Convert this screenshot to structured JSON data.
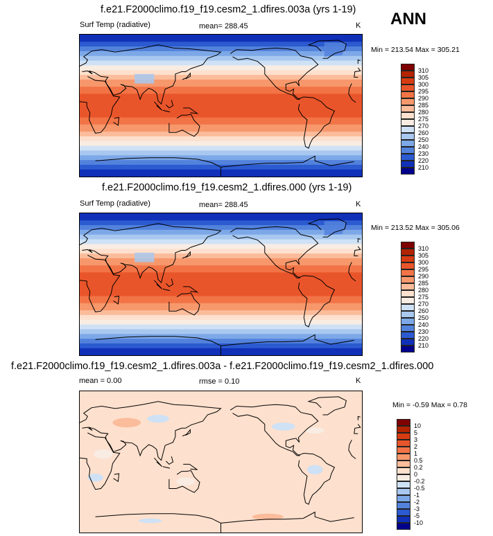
{
  "season": "ANN",
  "units": "K",
  "panels": [
    {
      "title": "f.e21.F2000climo.f19_f19.cesm2_1.dfires.003a (yrs 1-19)",
      "variable": "Surf Temp (radiative)",
      "mean_text": "mean= 288.45",
      "rmse_text": "",
      "units": "K",
      "minmax": "Min = 213.54 Max = 305.21"
    },
    {
      "title": "f.e21.F2000climo.f19_f19.cesm2_1.dfires.000 (yrs 1-19)",
      "variable": "Surf Temp (radiative)",
      "mean_text": "mean= 288.45",
      "rmse_text": "",
      "units": "K",
      "minmax": "Min = 213.52 Max = 305.06"
    },
    {
      "title": "f.e21.F2000climo.f19_f19.cesm2_1.dfires.003a - f.e21.F2000climo.f19_f19.cesm2_1.dfires.000",
      "variable": "",
      "mean_text": "mean =   0.00",
      "rmse_text": "rmse =   0.10",
      "units": "K",
      "minmax": "Min =  -0.59 Max =   0.78"
    }
  ],
  "chart_data": [
    {
      "type": "heatmap",
      "title": "f.e21.F2000climo.f19_f19.cesm2_1.dfires.003a (yrs 1-19)",
      "field": "Surf Temp (radiative)",
      "units": "K",
      "mean": 288.45,
      "min": 213.54,
      "max": 305.21,
      "colorbar_levels": [
        310,
        305,
        300,
        295,
        290,
        285,
        280,
        275,
        270,
        260,
        250,
        240,
        230,
        220,
        210
      ],
      "colorbar_colors": [
        "#7f0000",
        "#b22300",
        "#d63b11",
        "#e9552a",
        "#f27446",
        "#f7986c",
        "#fbbc9b",
        "#fde0cd",
        "#f8ece3",
        "#cfe1f5",
        "#a8c8f0",
        "#7da8e8",
        "#5382dc",
        "#2c5ad0",
        "#1030b8",
        "#00008c"
      ]
    },
    {
      "type": "heatmap",
      "title": "f.e21.F2000climo.f19_f19.cesm2_1.dfires.000 (yrs 1-19)",
      "field": "Surf Temp (radiative)",
      "units": "K",
      "mean": 288.45,
      "min": 213.52,
      "max": 305.06,
      "colorbar_levels": [
        310,
        305,
        300,
        295,
        290,
        285,
        280,
        275,
        270,
        260,
        250,
        240,
        230,
        220,
        210
      ],
      "colorbar_colors": [
        "#7f0000",
        "#b22300",
        "#d63b11",
        "#e9552a",
        "#f27446",
        "#f7986c",
        "#fbbc9b",
        "#fde0cd",
        "#f8ece3",
        "#cfe1f5",
        "#a8c8f0",
        "#7da8e8",
        "#5382dc",
        "#2c5ad0",
        "#1030b8",
        "#00008c"
      ]
    },
    {
      "type": "heatmap",
      "title": "f.e21.F2000climo.f19_f19.cesm2_1.dfires.003a - f.e21.F2000climo.f19_f19.cesm2_1.dfires.000",
      "units": "K",
      "mean": 0.0,
      "rmse": 0.1,
      "min": -0.59,
      "max": 0.78,
      "colorbar_levels": [
        "10",
        "5",
        "3",
        "2",
        "1",
        "0.5",
        "0.2",
        "0",
        "-0.2",
        "-0.5",
        "-1",
        "-2",
        "-3",
        "-5",
        "-10"
      ],
      "colorbar_colors": [
        "#7f0000",
        "#b22300",
        "#d63b11",
        "#e9552a",
        "#f27446",
        "#f7986c",
        "#fbbc9b",
        "#fde0cd",
        "#f8ece3",
        "#cfe1f5",
        "#a8c8f0",
        "#7da8e8",
        "#5382dc",
        "#2c5ad0",
        "#1030b8",
        "#00008c"
      ]
    }
  ]
}
